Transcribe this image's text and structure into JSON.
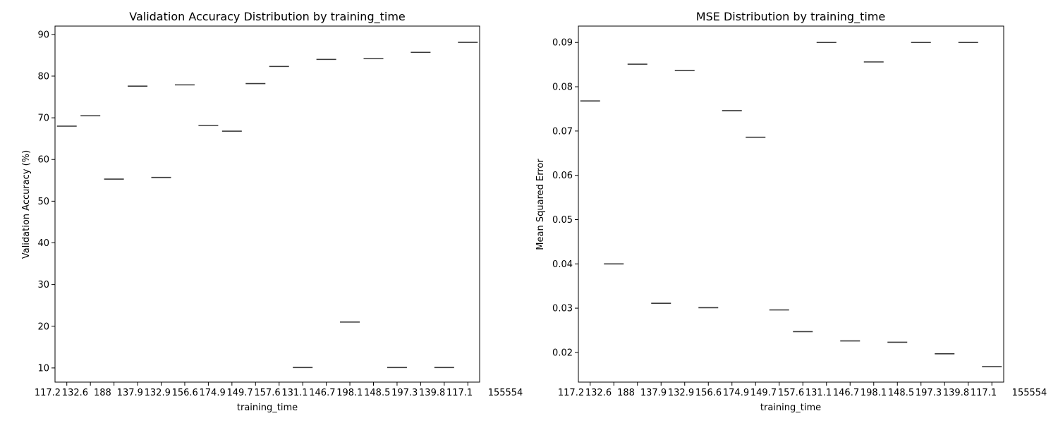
{
  "chart_data": [
    {
      "type": "box",
      "title": "Validation Accuracy Distribution by training_time",
      "xlabel": "training_time",
      "ylabel": "Validation Accuracy (%)",
      "ylim": [
        6.6,
        92
      ],
      "yticks": [
        "10",
        "20",
        "30",
        "40",
        "50",
        "60",
        "70",
        "80",
        "90"
      ],
      "x_tick_labels": [
        "117.2",
        "132.6",
        "188",
        "137.9",
        "132.9",
        "156.6",
        "174.9",
        "149.7",
        "157.6",
        "131.1",
        "146.7",
        "198.1",
        "148.5",
        "197.3",
        "139.8",
        "117.1",
        "155554"
      ],
      "values": [
        68.0,
        70.5,
        55.3,
        77.6,
        55.7,
        77.9,
        68.2,
        66.8,
        78.2,
        82.3,
        10.1,
        84.0,
        21.0,
        84.2,
        10.1,
        85.7,
        10.1,
        88.1
      ],
      "grid": false
    },
    {
      "type": "box",
      "title": "MSE Distribution by training_time",
      "xlabel": "training_time",
      "ylabel": "Mean Squared Error",
      "ylim": [
        0.0133,
        0.0937
      ],
      "yticks": [
        "0.02",
        "0.03",
        "0.04",
        "0.05",
        "0.06",
        "0.07",
        "0.08",
        "0.09"
      ],
      "x_tick_labels": [
        "117.2",
        "132.6",
        "188",
        "137.9",
        "132.9",
        "156.6",
        "174.9",
        "149.7",
        "157.6",
        "131.1",
        "146.7",
        "198.1",
        "148.5",
        "197.3",
        "139.8",
        "117.1",
        "155554"
      ],
      "values": [
        0.0768,
        0.04,
        0.0851,
        0.0311,
        0.0837,
        0.0301,
        0.0746,
        0.0686,
        0.0296,
        0.0247,
        0.09,
        0.0226,
        0.0856,
        0.0223,
        0.09,
        0.0197,
        0.09,
        0.0168
      ],
      "grid": false
    }
  ]
}
